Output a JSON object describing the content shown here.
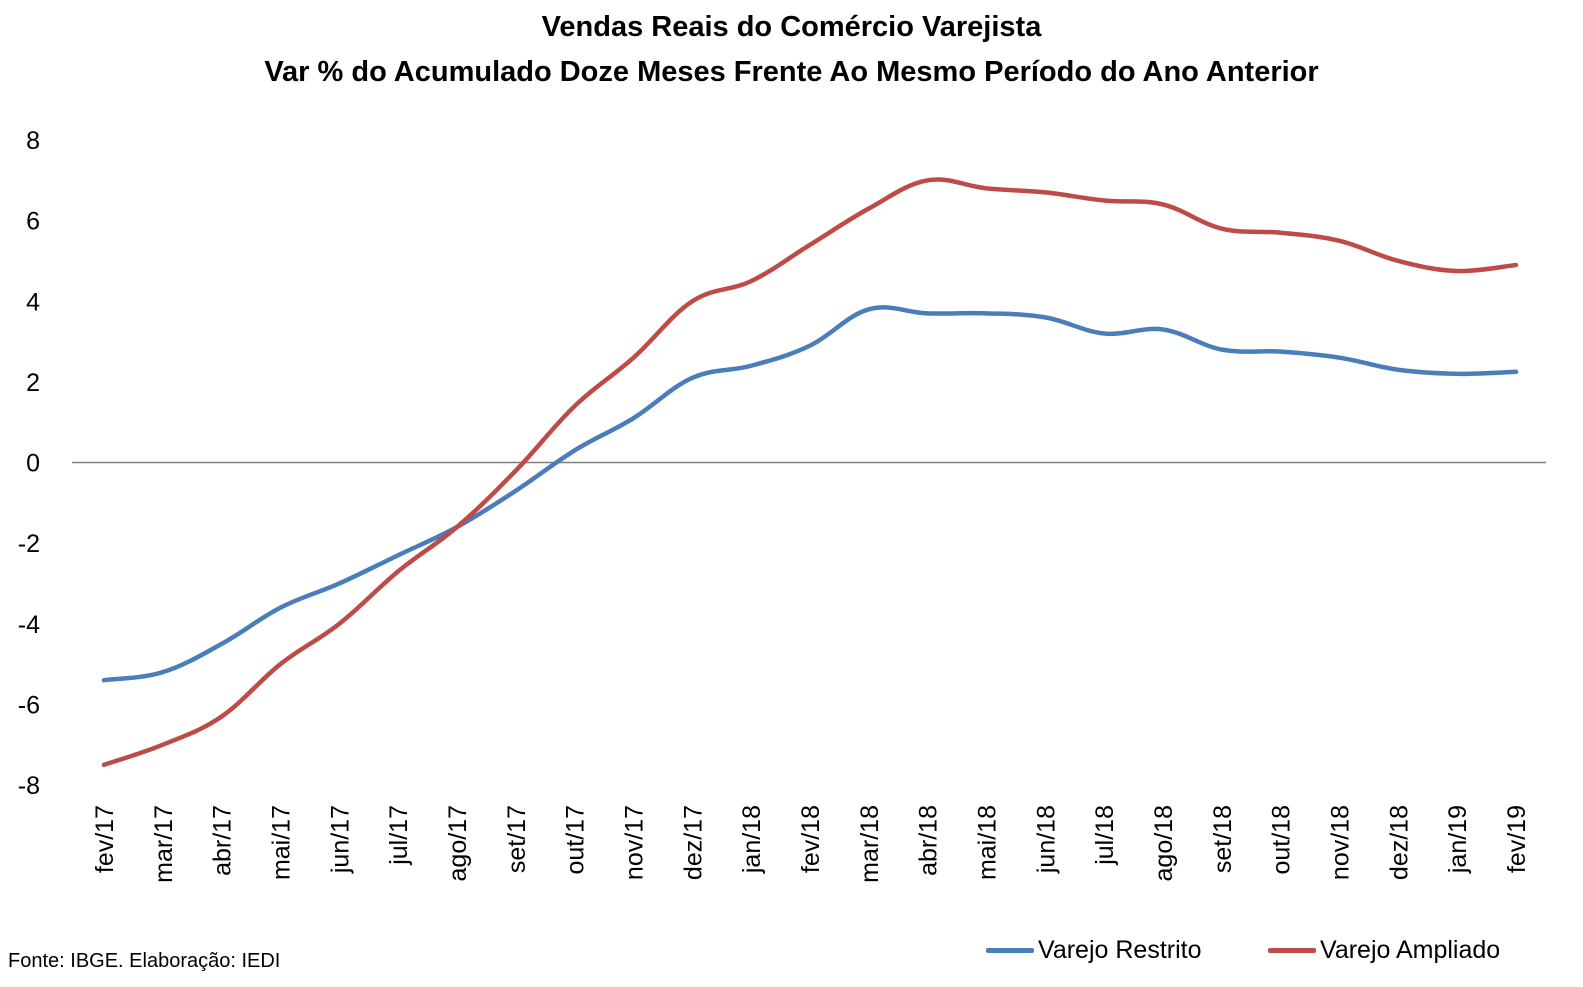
{
  "chart_data": {
    "type": "line",
    "title": "Vendas Reais do Comércio Varejista",
    "subtitle": "Var % do Acumulado Doze Meses Frente Ao Mesmo Período do Ano Anterior",
    "xlabel": "",
    "ylabel": "",
    "ylim": [
      -8,
      8
    ],
    "yticks": [
      "8",
      "6",
      "4",
      "2",
      "0",
      "-2",
      "-4",
      "-6",
      "-8"
    ],
    "categories": [
      "fev/17",
      "mar/17",
      "abr/17",
      "mai/17",
      "jun/17",
      "jul/17",
      "ago/17",
      "set/17",
      "out/17",
      "nov/17",
      "dez/17",
      "jan/18",
      "fev/18",
      "mar/18",
      "abr/18",
      "mai/18",
      "jun/18",
      "jul/18",
      "ago/18",
      "set/18",
      "out/18",
      "nov/18",
      "dez/18",
      "jan/19",
      "fev/19"
    ],
    "series": [
      {
        "name": "Varejo Restrito",
        "color": "#4a7ebb",
        "values": [
          -5.4,
          -5.2,
          -4.5,
          -3.6,
          -3.0,
          -2.3,
          -1.6,
          -0.7,
          0.3,
          1.1,
          2.1,
          2.4,
          2.9,
          3.8,
          3.7,
          3.7,
          3.6,
          3.2,
          3.3,
          2.8,
          2.75,
          2.6,
          2.3,
          2.2,
          2.25
        ]
      },
      {
        "name": "Varejo Ampliado",
        "color": "#be4b48",
        "values": [
          -7.5,
          -7.0,
          -6.3,
          -5.0,
          -4.0,
          -2.7,
          -1.6,
          -0.2,
          1.4,
          2.6,
          4.0,
          4.5,
          5.4,
          6.3,
          7.0,
          6.8,
          6.7,
          6.5,
          6.4,
          5.8,
          5.7,
          5.5,
          5.0,
          4.75,
          4.9
        ]
      }
    ],
    "grid": false,
    "legend": "bottom-right",
    "source": "Fonte: IBGE. Elaboração: IEDI"
  }
}
